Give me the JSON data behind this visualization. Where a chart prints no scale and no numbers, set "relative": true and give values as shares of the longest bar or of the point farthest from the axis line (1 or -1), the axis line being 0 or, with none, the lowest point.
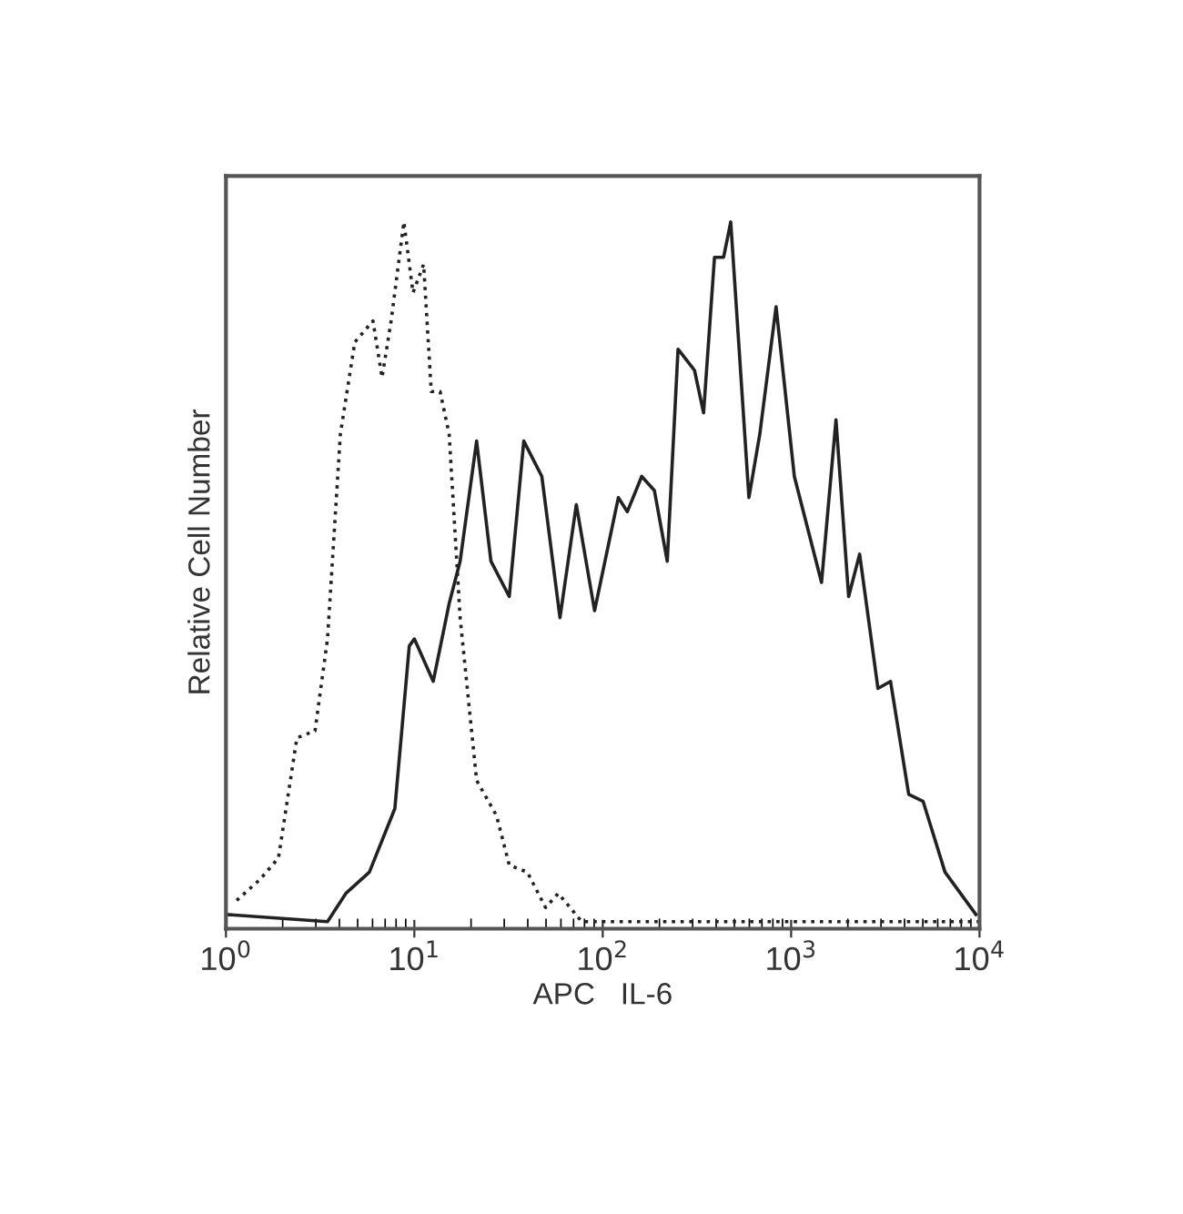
{
  "chart_data": {
    "type": "line",
    "relative": true,
    "xlabel": "APC   IL-6",
    "ylabel": "Relative Cell Number",
    "log": "x",
    "xlim": [
      1,
      10000
    ],
    "xticks": [
      {
        "value": 1,
        "label": "10$^{0}$"
      },
      {
        "value": 10,
        "label": "10$^{1}$"
      },
      {
        "value": 100,
        "label": "10$^{2}$"
      },
      {
        "value": 1000,
        "label": "10$^{3}$"
      },
      {
        "value": 10000,
        "label": "10$^{4}$"
      }
    ],
    "tick_labels": "x",
    "grid": false,
    "legend": false,
    "marker": "none",
    "series": [
      {
        "color": "#222222",
        "line_style": "dotted",
        "x": [
          1.14,
          1.52,
          1.9,
          2.38,
          2.97,
          3.46,
          4.05,
          4.83,
          6.03,
          6.74,
          7.53,
          8.8,
          9.84,
          11.2,
          12.3,
          13.7,
          15.3,
          17.5,
          21.4,
          27.3,
          31.9,
          39.8,
          49.7,
          58.1,
          77.4,
          10000
        ],
        "values": [
          0.04,
          0.07,
          0.1,
          0.27,
          0.28,
          0.41,
          0.7,
          0.83,
          0.86,
          0.78,
          0.86,
          1.0,
          0.9,
          0.94,
          0.76,
          0.76,
          0.7,
          0.44,
          0.21,
          0.16,
          0.09,
          0.08,
          0.03,
          0.05,
          0.01,
          0.01
        ]
      },
      {
        "color": "#222222",
        "line_style": "solid",
        "x": [
          1.02,
          3.46,
          4.33,
          5.77,
          7.88,
          9.4,
          10.0,
          12.6,
          15.3,
          17.5,
          21.4,
          25.5,
          31.9,
          38.1,
          47.5,
          59.3,
          72.4,
          90.5,
          121,
          135,
          161,
          188,
          220,
          251,
          307,
          343,
          392,
          438,
          478,
          597,
          682,
          832,
          1040,
          1450,
          1730,
          2020,
          2310,
          2890,
          3370,
          4210,
          5020,
          6560,
          9570
        ],
        "values": [
          0.02,
          0.01,
          0.05,
          0.08,
          0.17,
          0.4,
          0.41,
          0.35,
          0.46,
          0.52,
          0.69,
          0.52,
          0.47,
          0.69,
          0.64,
          0.44,
          0.6,
          0.45,
          0.61,
          0.59,
          0.64,
          0.62,
          0.52,
          0.82,
          0.79,
          0.73,
          0.95,
          0.95,
          1.0,
          0.61,
          0.7,
          0.88,
          0.64,
          0.49,
          0.72,
          0.47,
          0.53,
          0.34,
          0.35,
          0.19,
          0.18,
          0.08,
          0.02
        ]
      }
    ]
  }
}
